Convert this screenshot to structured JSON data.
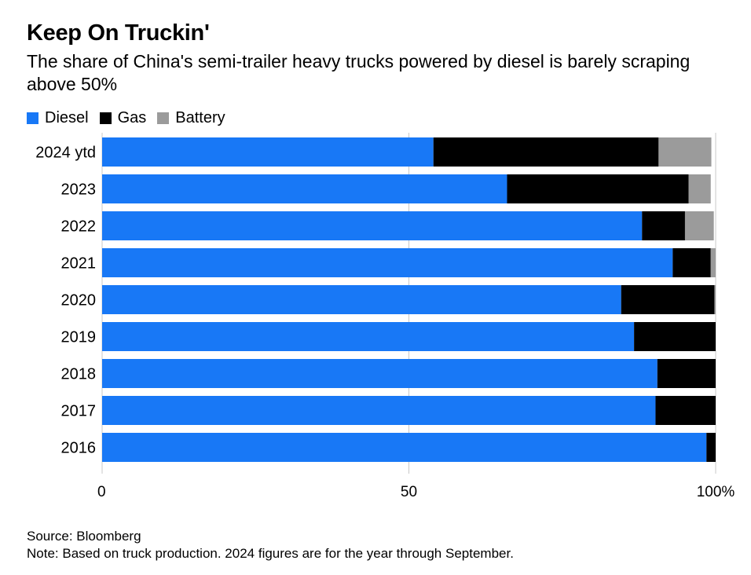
{
  "header": {
    "title": "Keep On Truckin'",
    "subtitle": "The share of China's semi-trailer heavy trucks powered by diesel is barely scraping above 50%"
  },
  "legend": [
    {
      "label": "Diesel",
      "color": "#1878f6"
    },
    {
      "label": "Gas",
      "color": "#000000"
    },
    {
      "label": "Battery",
      "color": "#9b9b9b"
    }
  ],
  "footer": {
    "source": "Source: Bloomberg",
    "note": "Note: Based on truck production. 2024 figures are for the year through September."
  },
  "chart_data": {
    "type": "bar",
    "orientation": "horizontal",
    "stacked": true,
    "title": "Keep On Truckin'",
    "subtitle": "The share of China's semi-trailer heavy trucks powered by diesel is barely scraping above 50%",
    "xlabel": "",
    "ylabel": "",
    "xlim": [
      0,
      100
    ],
    "grid": true,
    "legend_position": "top-left",
    "categories": [
      "2024 ytd",
      "2023",
      "2022",
      "2021",
      "2020",
      "2019",
      "2018",
      "2017",
      "2016"
    ],
    "x_ticks": [
      {
        "value": 0,
        "label": "0"
      },
      {
        "value": 50,
        "label": "50"
      },
      {
        "value": 100,
        "label": "100%"
      }
    ],
    "series": [
      {
        "name": "Diesel",
        "color": "#1878f6",
        "values": [
          54,
          66,
          88,
          93,
          84.6,
          86.7,
          90.5,
          90.2,
          98.5
        ]
      },
      {
        "name": "Gas",
        "color": "#000000",
        "values": [
          36.7,
          29.6,
          7,
          6.2,
          15.2,
          13.3,
          9.5,
          9.8,
          1.5
        ]
      },
      {
        "name": "Battery",
        "color": "#9b9b9b",
        "values": [
          8.6,
          3.6,
          4.7,
          0.8,
          0.2,
          0,
          0,
          0,
          0
        ]
      }
    ]
  }
}
